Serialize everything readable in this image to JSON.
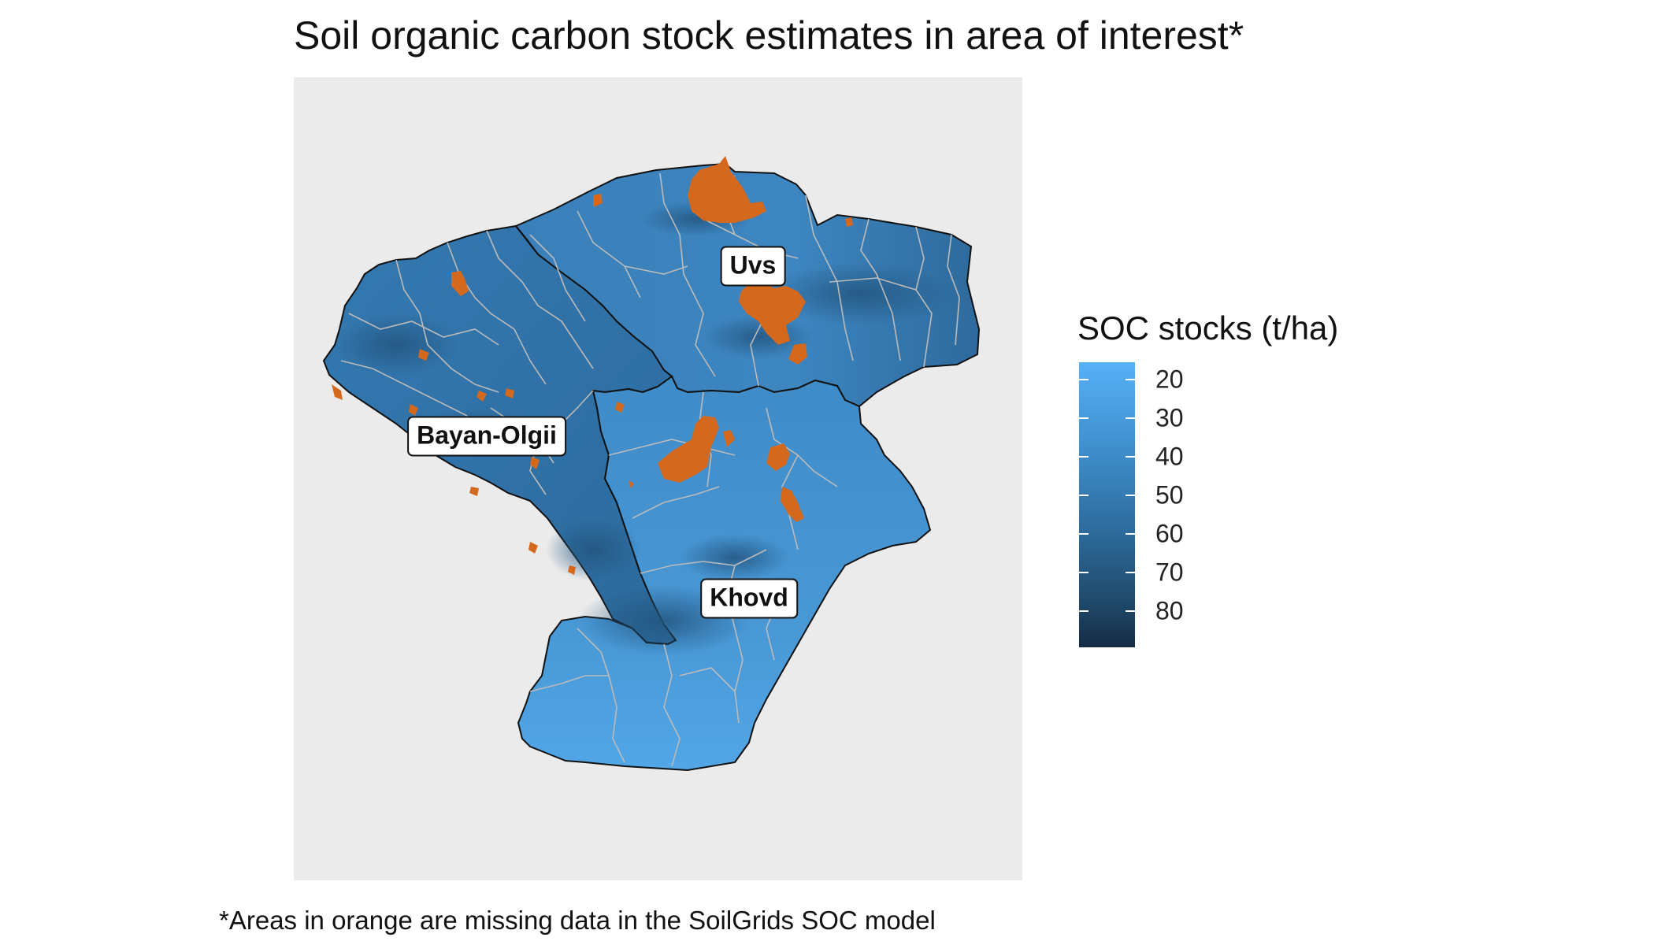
{
  "title": "Soil organic carbon stock estimates in area of interest*",
  "footnote": "*Areas in orange are missing data in the SoilGrids SOC model",
  "colors": {
    "panel_background": "#ebebeb",
    "missing_data": "#d4691e",
    "scale_low": "#56b1f7",
    "scale_high": "#132b43",
    "province_border": "#111111",
    "district_border": "#bbbbbb"
  },
  "map": {
    "regions": [
      {
        "name": "Uvs"
      },
      {
        "name": "Bayan-Olgii"
      },
      {
        "name": "Khovd"
      }
    ]
  },
  "legend": {
    "title": "SOC stocks (t/ha)",
    "ticks": [
      "20",
      "30",
      "40",
      "50",
      "60",
      "70",
      "80"
    ]
  }
}
